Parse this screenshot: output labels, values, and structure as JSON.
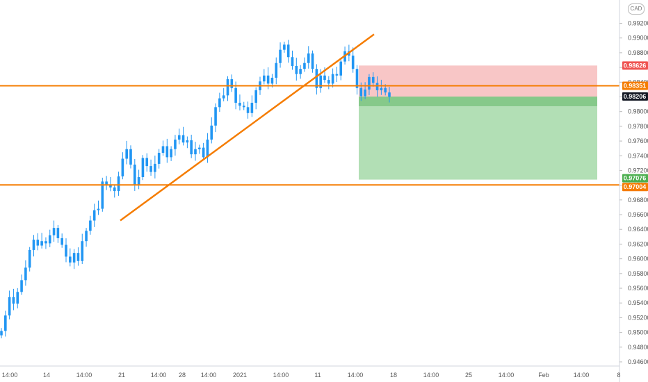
{
  "currency_badge": "CAD",
  "colors": {
    "candle": "#2196f3",
    "trendline": "#f57c00",
    "stop_zone": "#f8c6c6",
    "target_zone": "#b2dfb5",
    "entry_zone": "#86c98a",
    "stop_tag": "#ef5350",
    "entry_tag": "#f57c00",
    "last_tag": "#131722",
    "target_tag": "#4caf50",
    "support_tag": "#f57c00"
  },
  "chart_data": {
    "type": "candlestick",
    "y_axis": {
      "range": [
        0.9456,
        0.9956
      ],
      "ticks": [
        "0.99200",
        "0.99000",
        "0.98800",
        "0.98600",
        "0.98400",
        "0.98200",
        "0.98000",
        "0.97800",
        "0.97600",
        "0.97400",
        "0.97200",
        "0.97000",
        "0.96800",
        "0.96600",
        "0.96400",
        "0.96200",
        "0.96000",
        "0.95800",
        "0.95600",
        "0.95400",
        "0.95200",
        "0.95000",
        "0.94800",
        "0.94600"
      ]
    },
    "x_axis": {
      "ticks": [
        "14:00",
        "14",
        "14:00",
        "21",
        "14:00",
        "28",
        "14:00",
        "2021",
        "14:00",
        "11",
        "14:00",
        "18",
        "14:00",
        "25",
        "14:00",
        "Feb",
        "14:00",
        "8"
      ]
    },
    "price_tags": [
      {
        "label": "0.98626",
        "role": "stop"
      },
      {
        "label": "0.98351",
        "role": "entry"
      },
      {
        "label": "0.98206",
        "role": "last"
      },
      {
        "label": "0.97076",
        "role": "target"
      },
      {
        "label": "0.97004",
        "role": "support"
      }
    ],
    "horizontal_lines": [
      0.98351,
      0.97004
    ],
    "trendlines": [
      {
        "from": [
          0.9652,
          "21"
        ],
        "to": [
          0.9905,
          "11"
        ]
      }
    ],
    "position": {
      "stop": 0.98626,
      "entry": 0.98351,
      "entry_zone_low": 0.98072,
      "target": 0.97076
    },
    "series": [
      {
        "close_path": [
          0.9502,
          0.9523,
          0.9548,
          0.9539,
          0.9555,
          0.9571,
          0.9588,
          0.9612,
          0.9626,
          0.9618,
          0.9624,
          0.9621,
          0.9632,
          0.9642,
          0.9628,
          0.9619,
          0.9603,
          0.9595,
          0.9608,
          0.9597,
          0.9624,
          0.9638,
          0.9652,
          0.9666,
          0.9668,
          0.9705,
          0.9701,
          0.9697,
          0.9692,
          0.9712,
          0.9736,
          0.9749,
          0.9728,
          0.9701,
          0.9711,
          0.9737,
          0.9726,
          0.9718,
          0.9729,
          0.9744,
          0.9753,
          0.9738,
          0.9749,
          0.9762,
          0.9768,
          0.9758,
          0.9761,
          0.9742,
          0.9749,
          0.9751,
          0.9738,
          0.9762,
          0.9781,
          0.9806,
          0.9818,
          0.9822,
          0.9844,
          0.9832,
          0.9812,
          0.9808,
          0.9806,
          0.9798,
          0.9812,
          0.9829,
          0.9841,
          0.9849,
          0.9838,
          0.9846,
          0.9866,
          0.9884,
          0.9891,
          0.9874,
          0.9862,
          0.9851,
          0.9858,
          0.9866,
          0.9879,
          0.9858,
          0.9832,
          0.9849,
          0.9843,
          0.9838,
          0.9851,
          0.9849,
          0.9868,
          0.9882,
          0.9876,
          0.9858,
          0.9832,
          0.9821,
          0.983,
          0.9847,
          0.9839,
          0.9829,
          0.9832,
          0.9826,
          0.982
        ]
      }
    ]
  }
}
